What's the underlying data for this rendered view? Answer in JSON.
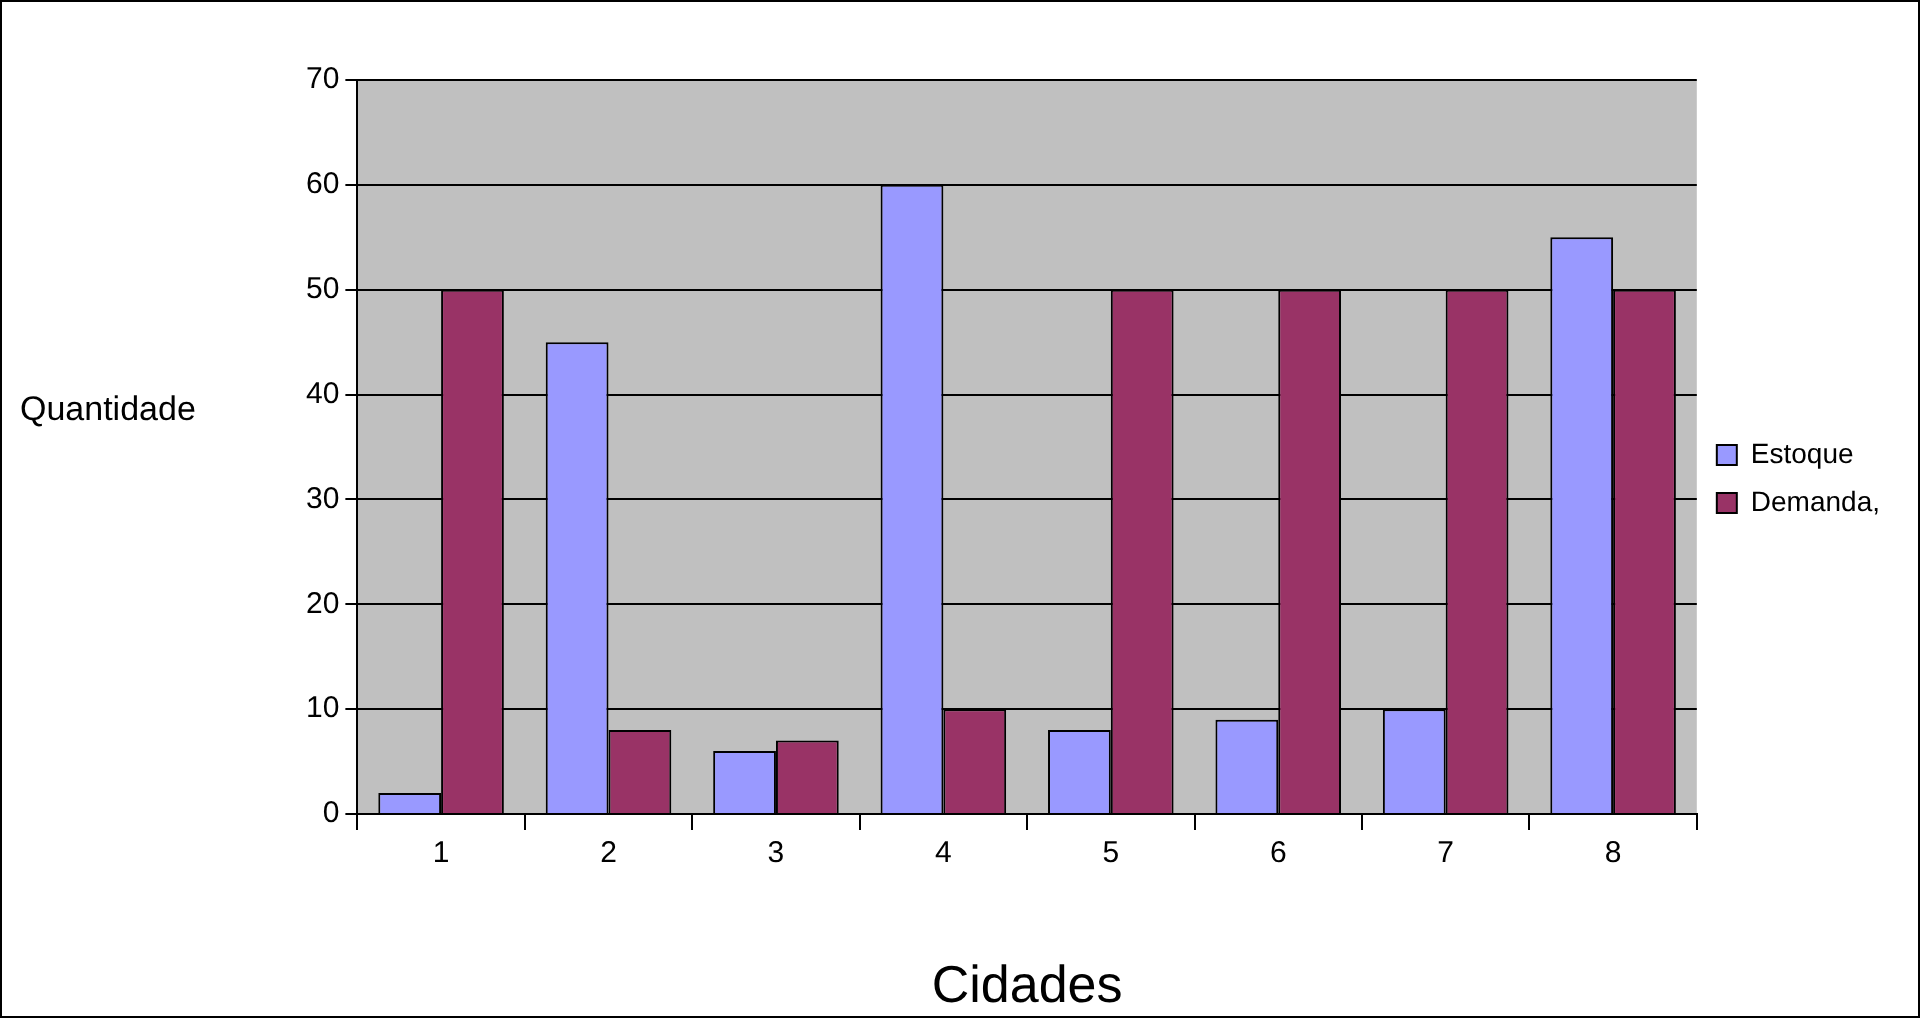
{
  "chart_data": {
    "type": "bar",
    "xlabel": "Cidades",
    "ylabel": "Quantidade",
    "categories": [
      "1",
      "2",
      "3",
      "4",
      "5",
      "6",
      "7",
      "8"
    ],
    "series": [
      {
        "name": "Estoque",
        "color": "#9999ff",
        "values": [
          2,
          45,
          6,
          60,
          8,
          9,
          10,
          55
        ]
      },
      {
        "name": "Demanda,",
        "color": "#993366",
        "values": [
          50,
          8,
          7,
          10,
          50,
          50,
          50,
          50
        ]
      }
    ],
    "ylim": [
      0,
      70
    ],
    "yticks": [
      0,
      10,
      20,
      30,
      40,
      50,
      60,
      70
    ],
    "grid": "y",
    "legend": "right"
  }
}
